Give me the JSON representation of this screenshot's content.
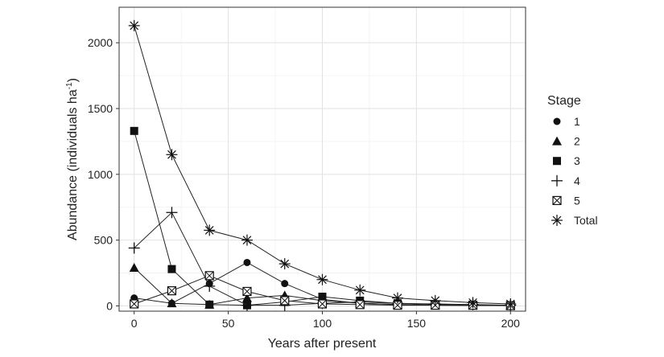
{
  "chart_data": {
    "type": "line",
    "xlabel": "Years after present",
    "ylabel": "Abundance (individuals ha",
    "ylabel_sup": "-1",
    "ylabel_suffix": ")",
    "xlim": [
      -8,
      208
    ],
    "ylim": [
      -40,
      2270
    ],
    "x_ticks": [
      0,
      50,
      100,
      150,
      200
    ],
    "y_ticks": [
      0,
      500,
      1000,
      1500,
      2000
    ],
    "x_minor": [
      25,
      75,
      125,
      175
    ],
    "y_minor": [
      250,
      750,
      1250,
      1750
    ],
    "grid": true,
    "legend_title": "Stage",
    "legend_position": "right",
    "series": [
      {
        "name": "1",
        "marker": "circle",
        "x": [
          0,
          20,
          40,
          60,
          80,
          100,
          120,
          140,
          160,
          180,
          200
        ],
        "y": [
          60,
          20,
          170,
          330,
          170,
          50,
          20,
          10,
          5,
          5,
          3
        ]
      },
      {
        "name": "2",
        "marker": "triangle",
        "x": [
          0,
          20,
          40,
          60,
          80,
          100,
          120,
          140,
          160,
          180,
          200
        ],
        "y": [
          290,
          20,
          10,
          60,
          80,
          40,
          20,
          10,
          5,
          3,
          2
        ]
      },
      {
        "name": "3",
        "marker": "square",
        "x": [
          0,
          20,
          40,
          60,
          80,
          100,
          120,
          140,
          160,
          180,
          200
        ],
        "y": [
          1330,
          280,
          10,
          5,
          30,
          70,
          40,
          20,
          10,
          5,
          5
        ]
      },
      {
        "name": "4",
        "marker": "plus",
        "x": [
          0,
          20,
          40,
          60,
          80,
          100,
          120,
          140,
          160,
          180,
          200
        ],
        "y": [
          440,
          710,
          150,
          5,
          5,
          20,
          30,
          20,
          15,
          10,
          5
        ]
      },
      {
        "name": "5",
        "marker": "boxx",
        "x": [
          0,
          20,
          40,
          60,
          80,
          100,
          120,
          140,
          160,
          180,
          200
        ],
        "y": [
          15,
          115,
          230,
          110,
          40,
          15,
          10,
          5,
          5,
          5,
          2
        ]
      },
      {
        "name": "Total",
        "marker": "asterisk",
        "x": [
          0,
          20,
          40,
          60,
          80,
          100,
          120,
          140,
          160,
          180,
          200
        ],
        "y": [
          2130,
          1150,
          575,
          500,
          320,
          200,
          120,
          60,
          40,
          25,
          15
        ]
      }
    ]
  }
}
